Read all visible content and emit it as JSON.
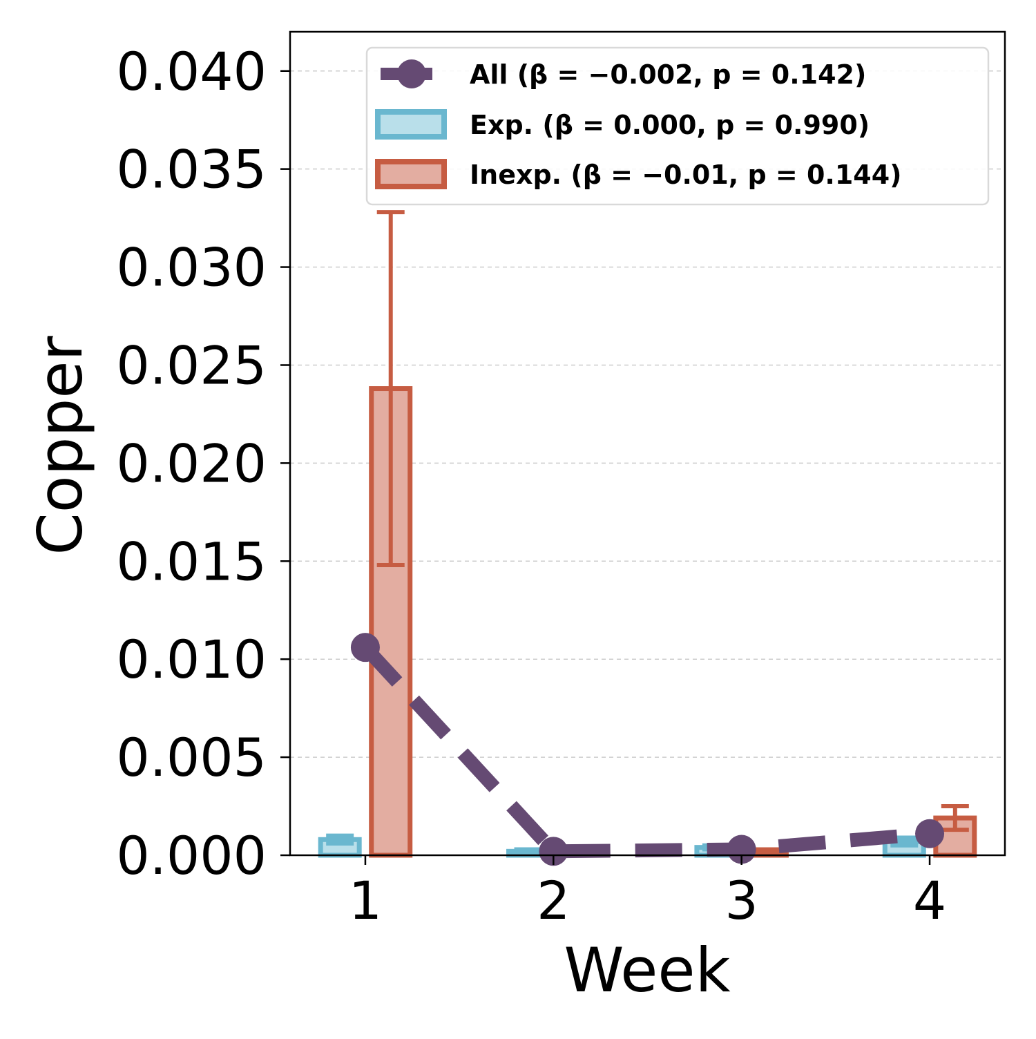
{
  "chart_data": {
    "type": "bar",
    "xlabel": "Week",
    "ylabel": "Copper",
    "x": [
      1,
      2,
      3,
      4
    ],
    "x_tick_labels": [
      "1",
      "2",
      "3",
      "4"
    ],
    "ylim": [
      0,
      0.042
    ],
    "xlim": [
      0.6,
      4.4
    ],
    "y_ticks": [
      0.0,
      0.005,
      0.01,
      0.015,
      0.02,
      0.025,
      0.03,
      0.035,
      0.04
    ],
    "y_tick_labels": [
      "0.000",
      "0.005",
      "0.010",
      "0.015",
      "0.020",
      "0.025",
      "0.030",
      "0.035",
      "0.040"
    ],
    "grid": "horizontal dashed",
    "legend_position": "upper right",
    "series": [
      {
        "name": "All",
        "legend_label": "All (β = −0.002, p = 0.142)",
        "kind": "line",
        "style": "dashed with circle markers",
        "values": [
          0.0106,
          0.0002,
          0.0003,
          0.0011
        ]
      },
      {
        "name": "Exp.",
        "legend_label": "Exp. (β = 0.000, p = 0.990)",
        "kind": "bar",
        "values": [
          0.0008,
          0.0002,
          0.0004,
          0.0007
        ],
        "error": [
          0.0002,
          0.0001,
          0.0001,
          0.0002
        ]
      },
      {
        "name": "Inexp.",
        "legend_label": "Inexp. (β = −0.01, p = 0.144)",
        "kind": "bar",
        "values": [
          0.0238,
          0.0002,
          0.0002,
          0.0019
        ],
        "error": [
          0.009,
          0.0001,
          0.0001,
          0.0006
        ]
      }
    ],
    "colors": {
      "all_line": "#654a73",
      "exp_edge": "#6ab7cf",
      "exp_fill": "#b9dfea",
      "inexp_edge": "#c65c42",
      "inexp_fill": "#e3ada1",
      "grid": "#cccccc"
    }
  }
}
